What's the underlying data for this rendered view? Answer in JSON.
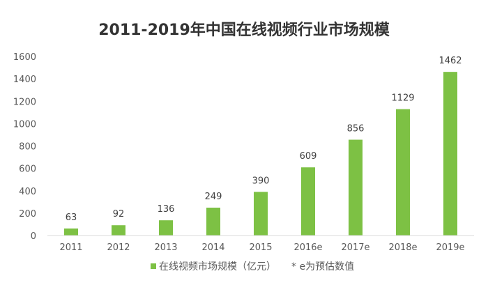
{
  "chart_data": {
    "type": "bar",
    "title": "2011-2019年中国在线视频行业市场规模",
    "categories": [
      "2011",
      "2012",
      "2013",
      "2014",
      "2015",
      "2016e",
      "2017e",
      "2018e",
      "2019e"
    ],
    "series": [
      {
        "name": "在线视频市场规模（亿元）",
        "values": [
          63,
          92,
          136,
          249,
          390,
          609,
          856,
          1129,
          1462
        ]
      }
    ],
    "ylim": [
      0,
      1600
    ],
    "yticks": [
      0,
      200,
      400,
      600,
      800,
      1000,
      1200,
      1400,
      1600
    ],
    "grid": false,
    "legend_position": "bottom",
    "note": "* e为预估数值",
    "colors": {
      "bar": "#7dc144",
      "text": "#595959",
      "axis": "#d9d9d9"
    }
  }
}
